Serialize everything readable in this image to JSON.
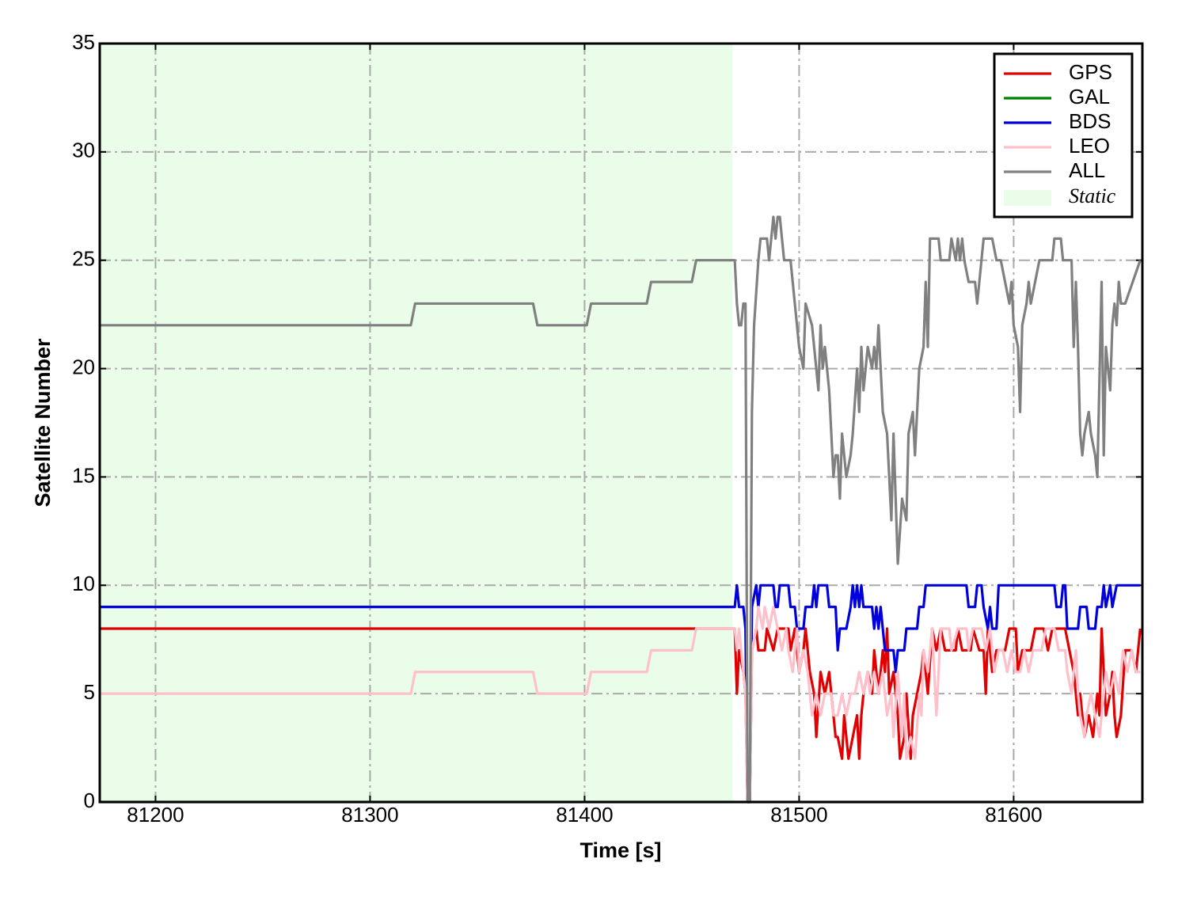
{
  "chart_data": {
    "type": "line",
    "x_label": "Time [s]",
    "y_label": "Satellite Number",
    "xlim": [
      81174,
      81660
    ],
    "ylim": [
      0,
      35
    ],
    "xticks": [
      81200,
      81300,
      81400,
      81500,
      81600
    ],
    "yticks": [
      0,
      5,
      10,
      15,
      20,
      25,
      30,
      35
    ],
    "grid": true,
    "legend": "upper right",
    "shaded_region": {
      "label": "Static",
      "x": [
        81174,
        81469
      ],
      "color": "#e9fde9"
    },
    "series": [
      {
        "name": "GPS",
        "color": "#e00000",
        "x": [
          81174,
          81470,
          81471,
          81472,
          81474,
          81475,
          81476,
          81477,
          81478,
          81480,
          81481,
          81484,
          81485,
          81488,
          81490,
          81495,
          81496,
          81498,
          81500,
          81502,
          81503,
          81505,
          81507,
          81508,
          81510,
          81512,
          81514,
          81516,
          81517,
          81518,
          81520,
          81521,
          81523,
          81525,
          81527,
          81528,
          81529,
          81530,
          81532,
          81534,
          81535,
          81537,
          81538,
          81539,
          81540,
          81541,
          81542,
          81544,
          81546,
          81547,
          81549,
          81550,
          81552,
          81553,
          81555,
          81557,
          81558,
          81560,
          81562,
          81564,
          81566,
          81568,
          81573,
          81574,
          81576,
          81580,
          81581,
          81584,
          81586,
          81587,
          81588,
          81590,
          81592,
          81596,
          81598,
          81601,
          81602,
          81604,
          81608,
          81610,
          81614,
          81616,
          81618,
          81624,
          81626,
          81628,
          81630,
          81631,
          81633,
          81635,
          81637,
          81639,
          81640,
          81641,
          81642,
          81643,
          81645,
          81646,
          81647,
          81648,
          81650,
          81652,
          81655,
          81657,
          81659
        ],
        "values": [
          8,
          8,
          5,
          7,
          6,
          5,
          0,
          0,
          7,
          8,
          7,
          7,
          8,
          7,
          8,
          8,
          7,
          8,
          6,
          7,
          8,
          6,
          5,
          3,
          6,
          5,
          6,
          4,
          3,
          3,
          2,
          4,
          2,
          3,
          4,
          2,
          4,
          5,
          6,
          5,
          7,
          5,
          6,
          7,
          6,
          8,
          5,
          6,
          4,
          2,
          3,
          5,
          2,
          4,
          5,
          6,
          7,
          5,
          8,
          7,
          8,
          7,
          7,
          8,
          7,
          7,
          8,
          7,
          7,
          5,
          8,
          6,
          7,
          7,
          8,
          8,
          6,
          7,
          7,
          8,
          8,
          7,
          8,
          8,
          7,
          6,
          4,
          5,
          3,
          4,
          3,
          5,
          4,
          8,
          6,
          4,
          5,
          6,
          4,
          3,
          4,
          7,
          7,
          6,
          8
        ]
      },
      {
        "name": "GAL",
        "color": "#008000",
        "x": [
          81174,
          81659
        ],
        "values": [
          0,
          0
        ]
      },
      {
        "name": "BDS",
        "color": "#0000dd",
        "x": [
          81174,
          81470,
          81471,
          81472,
          81474,
          81475,
          81476,
          81477,
          81478,
          81480,
          81481,
          81482,
          81488,
          81489,
          81490,
          81491,
          81495,
          81496,
          81498,
          81499,
          81502,
          81503,
          81506,
          81507,
          81508,
          81509,
          81513,
          81514,
          81517,
          81518,
          81519,
          81522,
          81524,
          81525,
          81526,
          81527,
          81528,
          81529,
          81530,
          81534,
          81535,
          81536,
          81537,
          81538,
          81539,
          81540,
          81544,
          81545,
          81546,
          81549,
          81550,
          81555,
          81556,
          81558,
          81559,
          81578,
          81579,
          81582,
          81583,
          81585,
          81586,
          81588,
          81589,
          81590,
          81592,
          81593,
          81619,
          81620,
          81622,
          81623,
          81624,
          81625,
          81630,
          81631,
          81634,
          81635,
          81638,
          81639,
          81641,
          81642,
          81643,
          81645,
          81646,
          81648,
          81659
        ],
        "values": [
          9,
          9,
          10,
          9,
          9,
          8,
          0,
          0,
          9,
          10,
          9,
          10,
          10,
          9,
          9,
          10,
          10,
          9,
          9,
          8,
          8,
          9,
          9,
          10,
          9,
          10,
          10,
          9,
          9,
          7,
          8,
          8,
          9,
          10,
          9,
          10,
          9,
          10,
          9,
          9,
          8,
          9,
          8,
          9,
          8,
          7,
          7,
          6,
          7,
          7,
          8,
          8,
          9,
          9,
          10,
          10,
          9,
          9,
          10,
          10,
          9,
          8,
          9,
          8,
          8,
          10,
          10,
          9,
          9,
          10,
          10,
          8,
          8,
          9,
          9,
          8,
          8,
          9,
          9,
          10,
          9,
          10,
          9,
          10,
          10
        ]
      },
      {
        "name": "LEO",
        "color": "#ffc0cb",
        "x": [
          81174,
          81319,
          81321,
          81376,
          81378,
          81401,
          81403,
          81429,
          81431,
          81450,
          81452,
          81470,
          81471,
          81472,
          81474,
          81475,
          81476,
          81477,
          81478,
          81480,
          81481,
          81483,
          81484,
          81486,
          81488,
          81490,
          81492,
          81494,
          81495,
          81497,
          81499,
          81500,
          81502,
          81504,
          81506,
          81508,
          81510,
          81512,
          81515,
          81516,
          81518,
          81520,
          81522,
          81524,
          81526,
          81528,
          81530,
          81532,
          81533,
          81535,
          81537,
          81539,
          81540,
          81541,
          81543,
          81544,
          81546,
          81548,
          81549,
          81550,
          81552,
          81554,
          81556,
          81557,
          81558,
          81560,
          81562,
          81564,
          81566,
          81570,
          81571,
          81574,
          81578,
          81579,
          81581,
          81585,
          81587,
          81589,
          81591,
          81593,
          81595,
          81597,
          81599,
          81601,
          81603,
          81605,
          81607,
          81609,
          81613,
          81615,
          81619,
          81621,
          81624,
          81625,
          81627,
          81629,
          81630,
          81631,
          81633,
          81634,
          81636,
          81638,
          81640,
          81641,
          81643,
          81645,
          81647,
          81649,
          81651,
          81653,
          81655,
          81657,
          81659
        ],
        "values": [
          5,
          5,
          6,
          6,
          5,
          5,
          6,
          6,
          7,
          7,
          8,
          8,
          7,
          8,
          6,
          5,
          0,
          0,
          7,
          8,
          9,
          8,
          9,
          8,
          9,
          8,
          7,
          8,
          7,
          6,
          8,
          6,
          7,
          6,
          4,
          5,
          4,
          5,
          5,
          4,
          4,
          5,
          4,
          5,
          5,
          6,
          5,
          6,
          5,
          6,
          5,
          6,
          5,
          4,
          5,
          3,
          6,
          3,
          5,
          2,
          3,
          2,
          5,
          4,
          7,
          6,
          8,
          4,
          8,
          8,
          7,
          8,
          8,
          7,
          8,
          8,
          7,
          8,
          6,
          7,
          7,
          6,
          7,
          6,
          6,
          7,
          6,
          7,
          7,
          8,
          8,
          7,
          7,
          6,
          5,
          7,
          5,
          4,
          3,
          4,
          5,
          4,
          3,
          4,
          6,
          5,
          6,
          5,
          7,
          6,
          7,
          6,
          6
        ]
      },
      {
        "name": "ALL",
        "color": "#808080",
        "x": [
          81174,
          81319,
          81321,
          81376,
          81378,
          81401,
          81403,
          81429,
          81431,
          81450,
          81452,
          81470,
          81471,
          81472,
          81473,
          81474,
          81475,
          81476,
          81477,
          81478,
          81479,
          81481,
          81482,
          81485,
          81486,
          81487,
          81488,
          81489,
          81490,
          81491,
          81492,
          81493,
          81496,
          81498,
          81500,
          81502,
          81503,
          81506,
          81508,
          81509,
          81510,
          81511,
          81512,
          81514,
          81516,
          81517,
          81518,
          81519,
          81520,
          81522,
          81524,
          81525,
          81527,
          81528,
          81529,
          81530,
          81531,
          81532,
          81534,
          81535,
          81536,
          81537,
          81538,
          81539,
          81541,
          81543,
          81544,
          81546,
          81548,
          81550,
          81551,
          81553,
          81554,
          81556,
          81558,
          81559,
          81560,
          81561,
          81565,
          81566,
          81570,
          81571,
          81573,
          81574,
          81575,
          81576,
          81577,
          81579,
          81582,
          81583,
          81585,
          81586,
          81590,
          81592,
          81594,
          81596,
          81598,
          81599,
          81600,
          81602,
          81603,
          81604,
          81606,
          81607,
          81608,
          81610,
          81612,
          81618,
          81619,
          81622,
          81623,
          81627,
          81628,
          81629,
          81630,
          81631,
          81632,
          81633,
          81635,
          81636,
          81638,
          81639,
          81641,
          81642,
          81643,
          81644,
          81645,
          81646,
          81647,
          81648,
          81649,
          81650,
          81652,
          81659
        ],
        "values": [
          22,
          22,
          23,
          23,
          22,
          22,
          23,
          23,
          24,
          24,
          25,
          25,
          23,
          22,
          22,
          23,
          23,
          0,
          0,
          18,
          22,
          25,
          26,
          26,
          25,
          26,
          27,
          26,
          27,
          27,
          26,
          25,
          25,
          23,
          21,
          20,
          23,
          22,
          20,
          19,
          22,
          20,
          21,
          19,
          15,
          16,
          16,
          14,
          17,
          15,
          16,
          17,
          20,
          18,
          21,
          19,
          20,
          21,
          20,
          21,
          20,
          22,
          20,
          18,
          17,
          13,
          17,
          11,
          14,
          13,
          17,
          18,
          16,
          20,
          21,
          24,
          21,
          26,
          26,
          25,
          25,
          26,
          25,
          26,
          25,
          26,
          25,
          24,
          24,
          23,
          25,
          26,
          26,
          25,
          25,
          24,
          23,
          24,
          22,
          21,
          18,
          22,
          23,
          24,
          23,
          24,
          25,
          25,
          26,
          26,
          25,
          25,
          21,
          24,
          21,
          17,
          16,
          17,
          18,
          17,
          16,
          15,
          24,
          16,
          21,
          20,
          19,
          22,
          23,
          22,
          24,
          23,
          23,
          25
        ]
      }
    ]
  }
}
